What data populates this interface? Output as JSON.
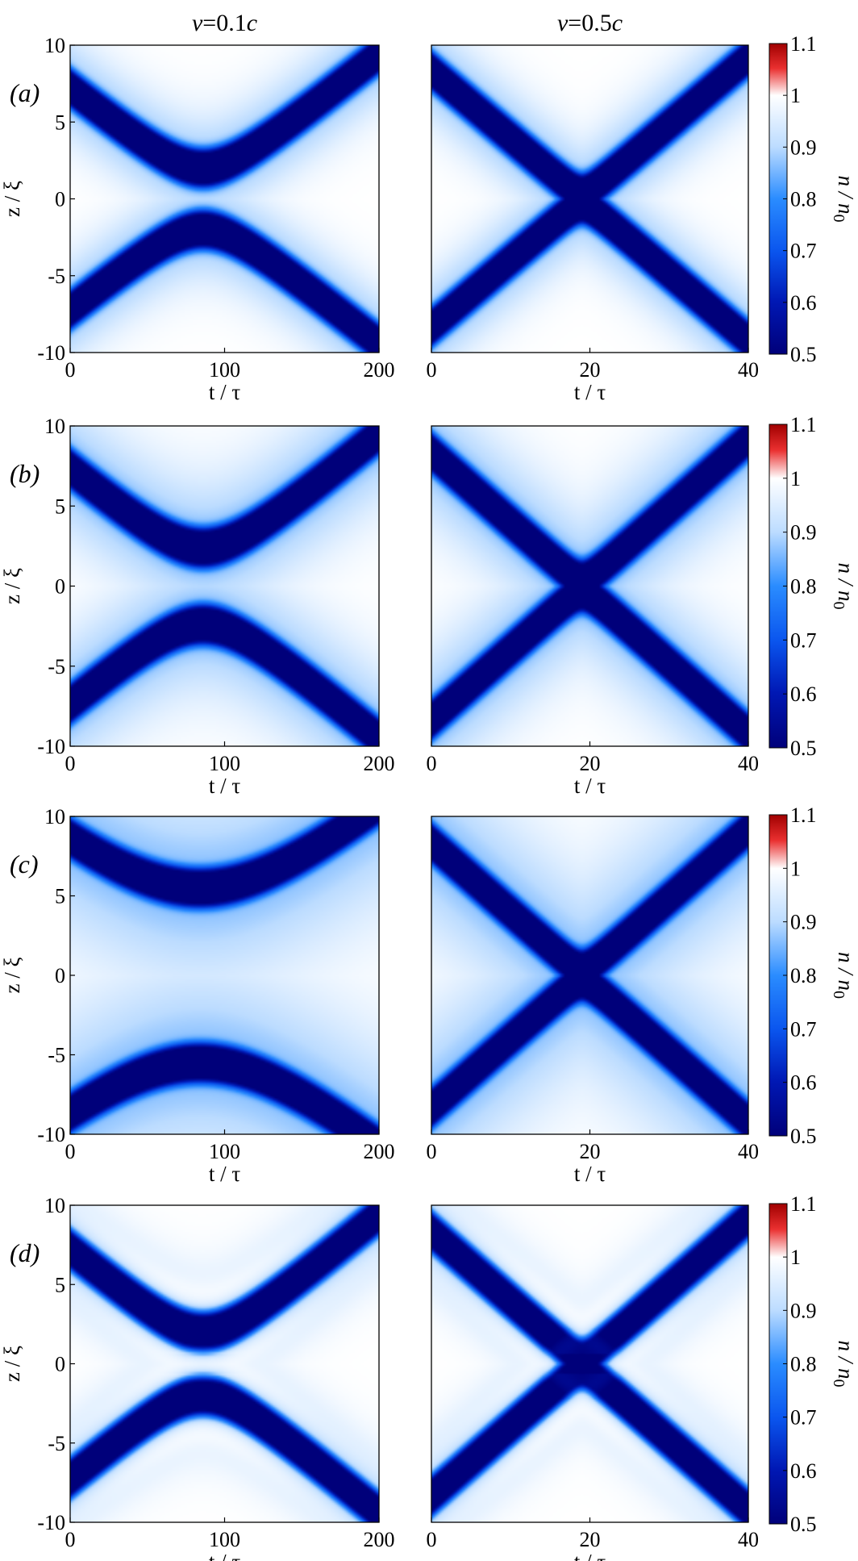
{
  "chart_data": {
    "type": "heatmap",
    "description_units": "density n/n0 vs time t/tau (x) and position z/xi (y)",
    "column_titles": [
      {
        "prefix": "v",
        "suffix": "=0.1",
        "unit": "c"
      },
      {
        "prefix": "v",
        "suffix": "=0.5",
        "unit": "c"
      }
    ],
    "row_labels": [
      "(a)",
      "(b)",
      "(c)",
      "(d)"
    ],
    "xlabel": "t / τ",
    "ylabel": "z / ξ",
    "colorbar_label": "n / n0",
    "colorbar_label_parts": {
      "main": "n / n",
      "sub": "0"
    },
    "colorbar_ticks": [
      "1.1",
      "1",
      "0.9",
      "0.8",
      "0.7",
      "0.6",
      "0.5"
    ],
    "colorbar_range": [
      0.5,
      1.1
    ],
    "colormap": {
      "low": "#00007a",
      "mid_blue": "#1a78ff",
      "white": "#ffffff",
      "high": "#b00000"
    },
    "ylim": [
      -10,
      10
    ],
    "yticks": [
      "10",
      "5",
      "0",
      "-5",
      "-10"
    ],
    "panels": [
      {
        "row": 0,
        "col": 0,
        "xlim": [
          0,
          200
        ],
        "xticks": [
          "0",
          "100",
          "200"
        ],
        "collision_time": 86,
        "min_separation": 2.0,
        "halo_width": 2.5,
        "overshoot": 0.0
      },
      {
        "row": 0,
        "col": 1,
        "xlim": [
          0,
          40
        ],
        "xticks": [
          "0",
          "20",
          "40"
        ],
        "collision_time": 19,
        "min_separation": 0.4,
        "halo_width": 2.5,
        "overshoot": 0.0
      },
      {
        "row": 1,
        "col": 0,
        "xlim": [
          0,
          200
        ],
        "xticks": [
          "0",
          "100",
          "200"
        ],
        "collision_time": 86,
        "min_separation": 2.4,
        "halo_width": 3.5,
        "overshoot": 0.0
      },
      {
        "row": 1,
        "col": 1,
        "xlim": [
          0,
          40
        ],
        "xticks": [
          "0",
          "20",
          "40"
        ],
        "collision_time": 19,
        "min_separation": 0.4,
        "halo_width": 3.5,
        "overshoot": 0.0
      },
      {
        "row": 2,
        "col": 0,
        "xlim": [
          0,
          200
        ],
        "xticks": [
          "0",
          "100",
          "200"
        ],
        "collision_time": 84,
        "min_separation": 5.5,
        "halo_width": 5.5,
        "overshoot": 0.0
      },
      {
        "row": 2,
        "col": 1,
        "xlim": [
          0,
          40
        ],
        "xticks": [
          "0",
          "20",
          "40"
        ],
        "collision_time": 19,
        "min_separation": 0.4,
        "halo_width": 5.0,
        "overshoot": 0.0
      },
      {
        "row": 3,
        "col": 0,
        "xlim": [
          0,
          200
        ],
        "xticks": [
          "0",
          "100",
          "200"
        ],
        "collision_time": 86,
        "min_separation": 2.0,
        "halo_width": 2.5,
        "overshoot": 1.0
      },
      {
        "row": 3,
        "col": 1,
        "xlim": [
          0,
          40
        ],
        "xticks": [
          "0",
          "20",
          "40"
        ],
        "collision_time": 19,
        "min_separation": 0.4,
        "halo_width": 2.5,
        "overshoot": 1.0
      }
    ]
  }
}
